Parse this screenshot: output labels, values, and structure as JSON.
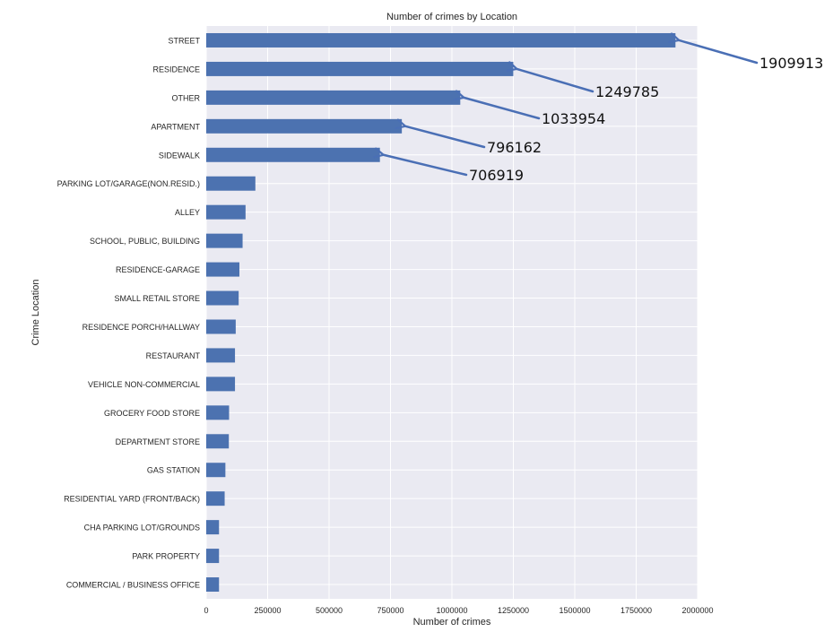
{
  "colors": {
    "bar": "#4c72b0",
    "plot_background": "#eaeaf2",
    "grid": "#ffffff",
    "arrow": "#4a6fb5"
  },
  "chart_data": {
    "type": "bar",
    "orientation": "horizontal",
    "title": "Number of crimes by Location",
    "xlabel": "Number of crimes",
    "ylabel": "Crime Location",
    "xlim": [
      0,
      2000000
    ],
    "xticks": [
      0,
      250000,
      500000,
      750000,
      1000000,
      1250000,
      1500000,
      1750000,
      2000000
    ],
    "xtick_labels": [
      "0",
      "250000",
      "500000",
      "750000",
      "1000000",
      "1250000",
      "1500000",
      "1750000",
      "2000000"
    ],
    "grid": true,
    "categories": [
      "STREET",
      "RESIDENCE",
      "OTHER",
      "APARTMENT",
      "SIDEWALK",
      "PARKING LOT/GARAGE(NON.RESID.)",
      "ALLEY",
      "SCHOOL, PUBLIC, BUILDING",
      "RESIDENCE-GARAGE",
      "SMALL RETAIL STORE",
      "RESIDENCE PORCH/HALLWAY",
      "RESTAURANT",
      "VEHICLE NON-COMMERCIAL",
      "GROCERY FOOD STORE",
      "DEPARTMENT STORE",
      "GAS STATION",
      "RESIDENTIAL YARD (FRONT/BACK)",
      "CHA PARKING LOT/GROUNDS",
      "PARK PROPERTY",
      "COMMERCIAL / BUSINESS OFFICE"
    ],
    "values": [
      1909913,
      1249785,
      1033954,
      796162,
      706919,
      200000,
      160000,
      148000,
      135000,
      132000,
      120000,
      117000,
      117000,
      93000,
      92000,
      78000,
      75000,
      52000,
      52000,
      52000
    ],
    "annotations": [
      {
        "category": "STREET",
        "text": "1909913"
      },
      {
        "category": "RESIDENCE",
        "text": "1249785"
      },
      {
        "category": "OTHER",
        "text": "1033954"
      },
      {
        "category": "APARTMENT",
        "text": "796162"
      },
      {
        "category": "SIDEWALK",
        "text": "706919"
      }
    ]
  }
}
